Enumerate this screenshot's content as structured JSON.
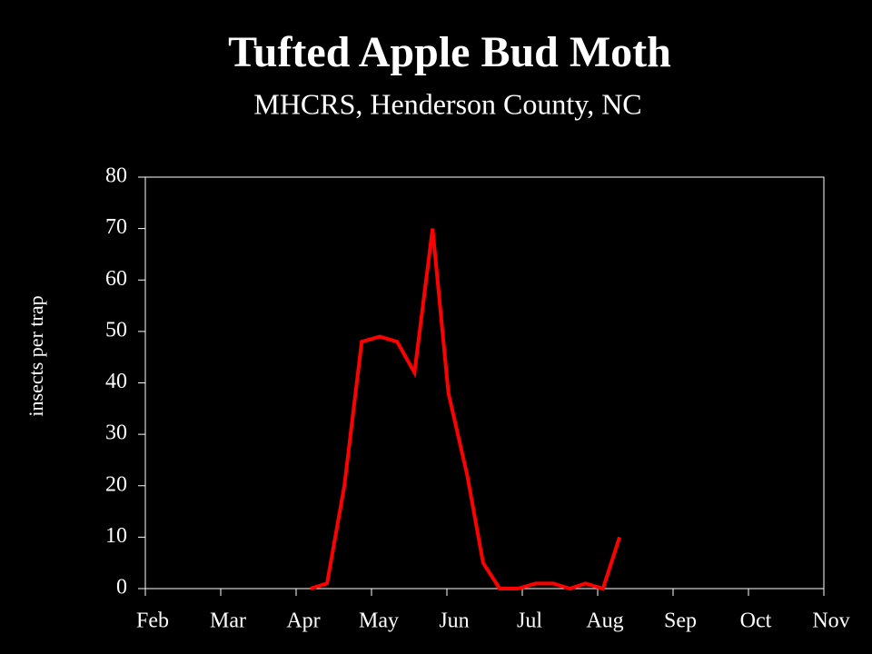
{
  "chart_data": {
    "type": "line",
    "title": "Tufted Apple Bud Moth",
    "subtitle": "MHCRS, Henderson County, NC",
    "y_label": "insects per trap",
    "x": [
      4.19,
      4.41,
      4.64,
      4.87,
      5.11,
      5.34,
      5.57,
      5.81,
      6.02,
      6.27,
      6.48,
      6.7,
      6.94,
      7.18,
      7.41,
      7.63,
      7.84,
      8.07,
      8.29
    ],
    "series": [
      {
        "color": "#ff0000",
        "values": [
          0,
          1,
          20,
          48,
          49,
          48,
          42,
          70,
          38,
          22,
          5,
          0,
          0,
          1,
          1,
          0,
          1,
          0,
          10
        ]
      }
    ],
    "xlim": [
      2,
      11
    ],
    "xticks": [
      {
        "value": 2,
        "label": "Feb"
      },
      {
        "value": 3,
        "label": "Mar"
      },
      {
        "value": 4,
        "label": "Apr"
      },
      {
        "value": 5,
        "label": "May"
      },
      {
        "value": 6,
        "label": "Jun"
      },
      {
        "value": 7,
        "label": "Jul"
      },
      {
        "value": 8,
        "label": "Aug"
      },
      {
        "value": 9,
        "label": "Sep"
      },
      {
        "value": 10,
        "label": "Oct"
      },
      {
        "value": 11,
        "label": "Nov"
      }
    ],
    "ylim": [
      0,
      80
    ],
    "yticks": [
      0,
      10,
      20,
      30,
      40,
      50,
      60,
      70,
      80
    ]
  }
}
